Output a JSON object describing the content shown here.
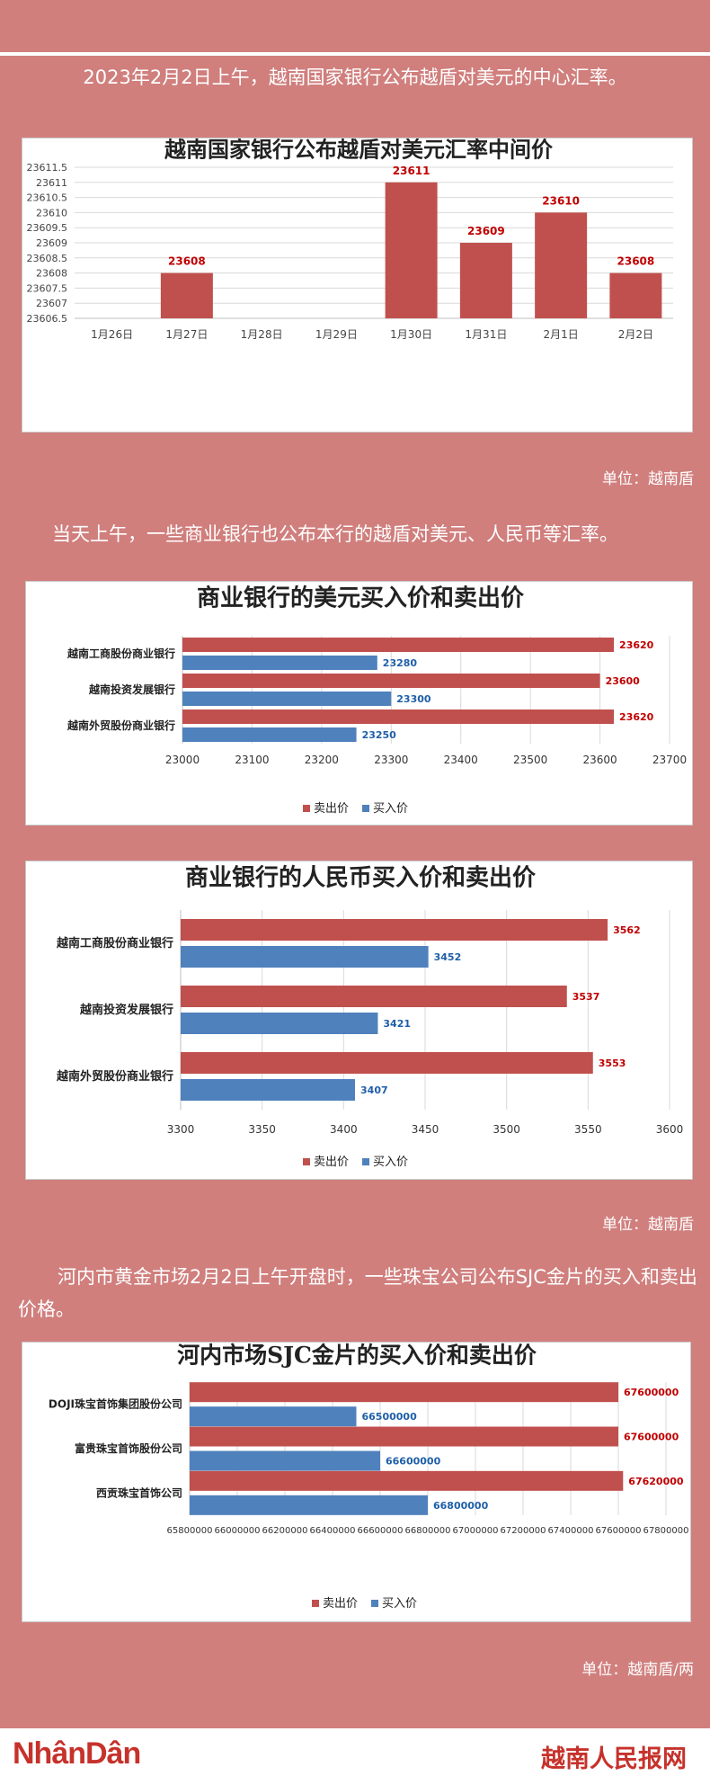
{
  "intro_text": "2023年2月2日上午，越南国家银行公布越盾对美元的中心汇率。",
  "unit_1": "单位：越南盾",
  "para_2": "当天上午，一些商业银行也公布本行的越盾对美元、人民币等汇率。",
  "unit_2": "单位：越南盾",
  "para_3": "河内市黄金市场2月2日上午开盘时，一些珠宝公司公布SJC金片的买入和卖出价格。",
  "unit_3": "单位：越南盾/两",
  "footer": {
    "left_logo": "NhânDân",
    "right_logo": "越南人民报网"
  },
  "colors": {
    "sell": "#c0504d",
    "buy": "#4f81bd",
    "background": "#d07f7d",
    "title": "#222222"
  },
  "chart_data": [
    {
      "type": "bar",
      "title": "越南国家银行公布越盾对美元汇率中间价",
      "categories": [
        "1月26日",
        "1月27日",
        "1月28日",
        "1月29日",
        "1月30日",
        "1月31日",
        "2月1日",
        "2月2日"
      ],
      "values": [
        null,
        23608,
        null,
        null,
        23611,
        23609,
        23610,
        23608
      ],
      "ylim": [
        23606.5,
        23611.5
      ],
      "yticks": [
        23606.5,
        23607,
        23607.5,
        23608,
        23608.5,
        23609,
        23609.5,
        23610,
        23610.5,
        23611,
        23611.5
      ],
      "grid": true
    },
    {
      "type": "bar",
      "orientation": "horizontal",
      "title": "商业银行的美元买入价和卖出价",
      "categories": [
        "越南工商股份商业银行",
        "越南投资发展银行",
        "越南外贸股份商业银行"
      ],
      "series": [
        {
          "name": "卖出价",
          "values": [
            23620,
            23600,
            23620
          ]
        },
        {
          "name": "买入价",
          "values": [
            23280,
            23300,
            23250
          ]
        }
      ],
      "xlim": [
        23000,
        23700
      ],
      "xticks": [
        23000,
        23100,
        23200,
        23300,
        23400,
        23500,
        23600,
        23700
      ],
      "legend": "bottom",
      "grid": true
    },
    {
      "type": "bar",
      "orientation": "horizontal",
      "title": "商业银行的人民币买入价和卖出价",
      "categories": [
        "越南工商股份商业银行",
        "越南投资发展银行",
        "越南外贸股份商业银行"
      ],
      "series": [
        {
          "name": "卖出价",
          "values": [
            3562,
            3537,
            3553
          ]
        },
        {
          "name": "买入价",
          "values": [
            3452,
            3421,
            3407
          ]
        }
      ],
      "xlim": [
        3300,
        3600
      ],
      "xticks": [
        3300,
        3350,
        3400,
        3450,
        3500,
        3550,
        3600
      ],
      "legend": "bottom",
      "grid": true
    },
    {
      "type": "bar",
      "orientation": "horizontal",
      "title": "河内市场SJC金片的买入价和卖出价",
      "categories": [
        "DOJI珠宝首饰集团股份公司",
        "富贵珠宝首饰股份公司",
        "西贡珠宝首饰公司"
      ],
      "series": [
        {
          "name": "卖出价",
          "values": [
            67600000,
            67600000,
            67620000
          ]
        },
        {
          "name": "买入价",
          "values": [
            66500000,
            66600000,
            66800000
          ]
        }
      ],
      "xlim": [
        65800000,
        67800000
      ],
      "xticks": [
        65800000,
        66000000,
        66200000,
        66400000,
        66600000,
        66800000,
        67000000,
        67200000,
        67400000,
        67600000,
        67800000
      ],
      "legend": "bottom",
      "grid": true
    }
  ]
}
